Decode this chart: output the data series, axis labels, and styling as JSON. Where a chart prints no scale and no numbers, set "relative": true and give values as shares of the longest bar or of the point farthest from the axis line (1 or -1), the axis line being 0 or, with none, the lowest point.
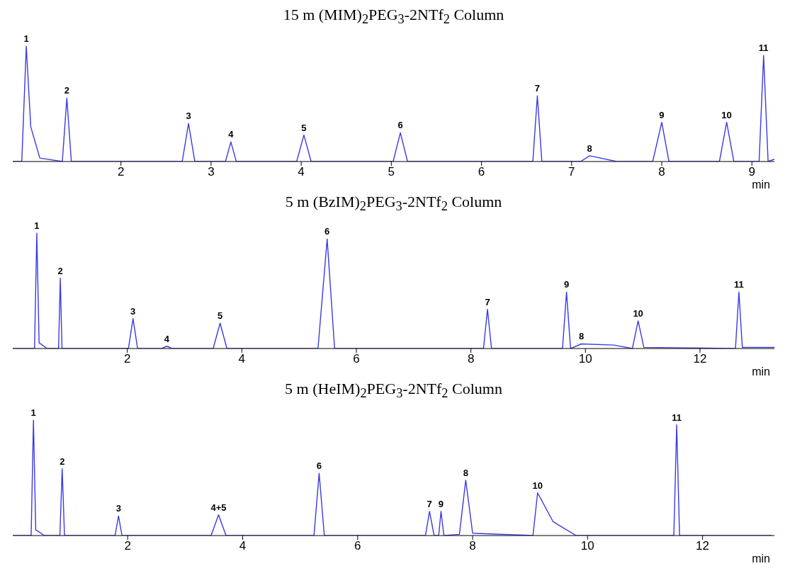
{
  "chart_data": [
    {
      "type": "line",
      "title": "15 m (MIM)$_{2}$PEG$_{3}$-2NTf$_{2}$ Column",
      "xlabel": "min",
      "relative": true,
      "tick_labels": "x",
      "grid": false,
      "legend": false,
      "marker": "none",
      "xlim": [
        0.8,
        9.25
      ],
      "xticks": [
        2,
        3,
        4,
        5,
        6,
        7,
        8,
        9
      ],
      "series": [
        {
          "color": "#3a3ae6",
          "x": [
            0.8,
            0.9,
            0.95,
            1.0,
            1.1,
            1.35,
            1.4,
            1.45,
            2.68,
            2.75,
            2.82,
            3.16,
            3.22,
            3.28,
            3.95,
            4.03,
            4.11,
            5.02,
            5.1,
            5.18,
            6.57,
            6.62,
            6.67,
            7.1,
            7.2,
            7.5,
            7.9,
            8.0,
            8.08,
            8.64,
            8.72,
            8.8,
            9.08,
            9.13,
            9.18,
            9.25
          ],
          "values": [
            0,
            0,
            1,
            0.3,
            0.03,
            0,
            0.55,
            0,
            0,
            0.33,
            0,
            0,
            0.17,
            0,
            0,
            0.23,
            0,
            0,
            0.25,
            0,
            0,
            0.57,
            0,
            0,
            0.05,
            0,
            0,
            0.34,
            0,
            0,
            0.34,
            0,
            0,
            0.92,
            0,
            0.02
          ]
        }
      ],
      "annotations": [
        {
          "text": "1",
          "x": 0.95,
          "y": 1
        },
        {
          "text": "2",
          "x": 1.4,
          "y": 0.55
        },
        {
          "text": "3",
          "x": 2.75,
          "y": 0.33
        },
        {
          "text": "4",
          "x": 3.22,
          "y": 0.17
        },
        {
          "text": "5",
          "x": 4.03,
          "y": 0.23
        },
        {
          "text": "6",
          "x": 5.1,
          "y": 0.25
        },
        {
          "text": "7",
          "x": 6.62,
          "y": 0.57
        },
        {
          "text": "8",
          "x": 7.2,
          "y": 0.05
        },
        {
          "text": "9",
          "x": 8.0,
          "y": 0.34
        },
        {
          "text": "10",
          "x": 8.72,
          "y": 0.34
        },
        {
          "text": "11",
          "x": 9.13,
          "y": 0.92
        }
      ]
    },
    {
      "type": "line",
      "title": "5 m (BzIM)$_{2}$PEG$_{3}$-2NTf$_{2}$ Column",
      "xlabel": "min",
      "relative": true,
      "tick_labels": "x",
      "grid": false,
      "legend": false,
      "marker": "none",
      "xlim": [
        0,
        13.3
      ],
      "xticks": [
        2,
        4,
        6,
        8,
        10,
        12
      ],
      "series": [
        {
          "color": "#3a3ae6",
          "x": [
            0,
            0.38,
            0.42,
            0.46,
            0.6,
            0.8,
            0.83,
            0.86,
            2.02,
            2.1,
            2.18,
            2.6,
            2.69,
            2.78,
            3.5,
            3.62,
            3.74,
            5.33,
            5.49,
            5.62,
            8.22,
            8.29,
            8.36,
            9.6,
            9.67,
            9.74,
            9.93,
            10.5,
            10.82,
            10.92,
            11.02,
            12.62,
            12.68,
            12.74,
            13.3
          ],
          "values": [
            0,
            0,
            1,
            0.05,
            0,
            0,
            0.61,
            0,
            0,
            0.26,
            0,
            0,
            0.02,
            0,
            0,
            0.22,
            0,
            0,
            0.95,
            0,
            0,
            0.34,
            0,
            0,
            0.49,
            0,
            0.04,
            0.03,
            0,
            0.24,
            0.01,
            0,
            0.49,
            0.01,
            0.01
          ]
        }
      ],
      "annotations": [
        {
          "text": "1",
          "x": 0.42,
          "y": 1
        },
        {
          "text": "2",
          "x": 0.83,
          "y": 0.61
        },
        {
          "text": "3",
          "x": 2.1,
          "y": 0.26
        },
        {
          "text": "4",
          "x": 2.69,
          "y": 0.02
        },
        {
          "text": "5",
          "x": 3.62,
          "y": 0.22
        },
        {
          "text": "6",
          "x": 5.49,
          "y": 0.95
        },
        {
          "text": "7",
          "x": 8.29,
          "y": 0.34
        },
        {
          "text": "9",
          "x": 9.67,
          "y": 0.49
        },
        {
          "text": "8",
          "x": 9.93,
          "y": 0.04
        },
        {
          "text": "10",
          "x": 10.92,
          "y": 0.24
        },
        {
          "text": "11",
          "x": 12.68,
          "y": 0.49
        }
      ]
    },
    {
      "type": "line",
      "title": "5 m (HeIM)$_{2}$PEG$_{3}$-2NTf$_{2}$ Column",
      "xlabel": "min",
      "relative": true,
      "tick_labels": "x",
      "grid": false,
      "legend": false,
      "marker": "none",
      "xlim": [
        0,
        13.25
      ],
      "xticks": [
        2,
        4,
        6,
        8,
        10,
        12
      ],
      "series": [
        {
          "color": "#3a3ae6",
          "x": [
            0,
            0.32,
            0.36,
            0.4,
            0.55,
            0.82,
            0.86,
            0.9,
            1.78,
            1.84,
            1.9,
            3.45,
            3.58,
            3.71,
            5.24,
            5.33,
            5.42,
            7.18,
            7.25,
            7.33,
            7.41,
            7.45,
            7.5,
            7.77,
            7.88,
            8.0,
            9.05,
            9.13,
            9.4,
            9.8,
            11.5,
            11.55,
            11.6,
            13.2
          ],
          "values": [
            0,
            0,
            1,
            0.05,
            0,
            0,
            0.58,
            0,
            0,
            0.17,
            0,
            0,
            0.18,
            0,
            0,
            0.54,
            0,
            0,
            0.21,
            0,
            0,
            0.21,
            0,
            0.01,
            0.48,
            0.02,
            0,
            0.37,
            0.12,
            0,
            0,
            0.96,
            0,
            0
          ]
        }
      ],
      "annotations": [
        {
          "text": "1",
          "x": 0.36,
          "y": 1
        },
        {
          "text": "2",
          "x": 0.86,
          "y": 0.58
        },
        {
          "text": "3",
          "x": 1.84,
          "y": 0.17
        },
        {
          "text": "4+5",
          "x": 3.58,
          "y": 0.18
        },
        {
          "text": "6",
          "x": 5.33,
          "y": 0.54
        },
        {
          "text": "7",
          "x": 7.25,
          "y": 0.21
        },
        {
          "text": "9",
          "x": 7.45,
          "y": 0.21
        },
        {
          "text": "8",
          "x": 7.88,
          "y": 0.48
        },
        {
          "text": "10",
          "x": 9.13,
          "y": 0.37
        },
        {
          "text": "11",
          "x": 11.55,
          "y": 0.96
        }
      ]
    }
  ]
}
